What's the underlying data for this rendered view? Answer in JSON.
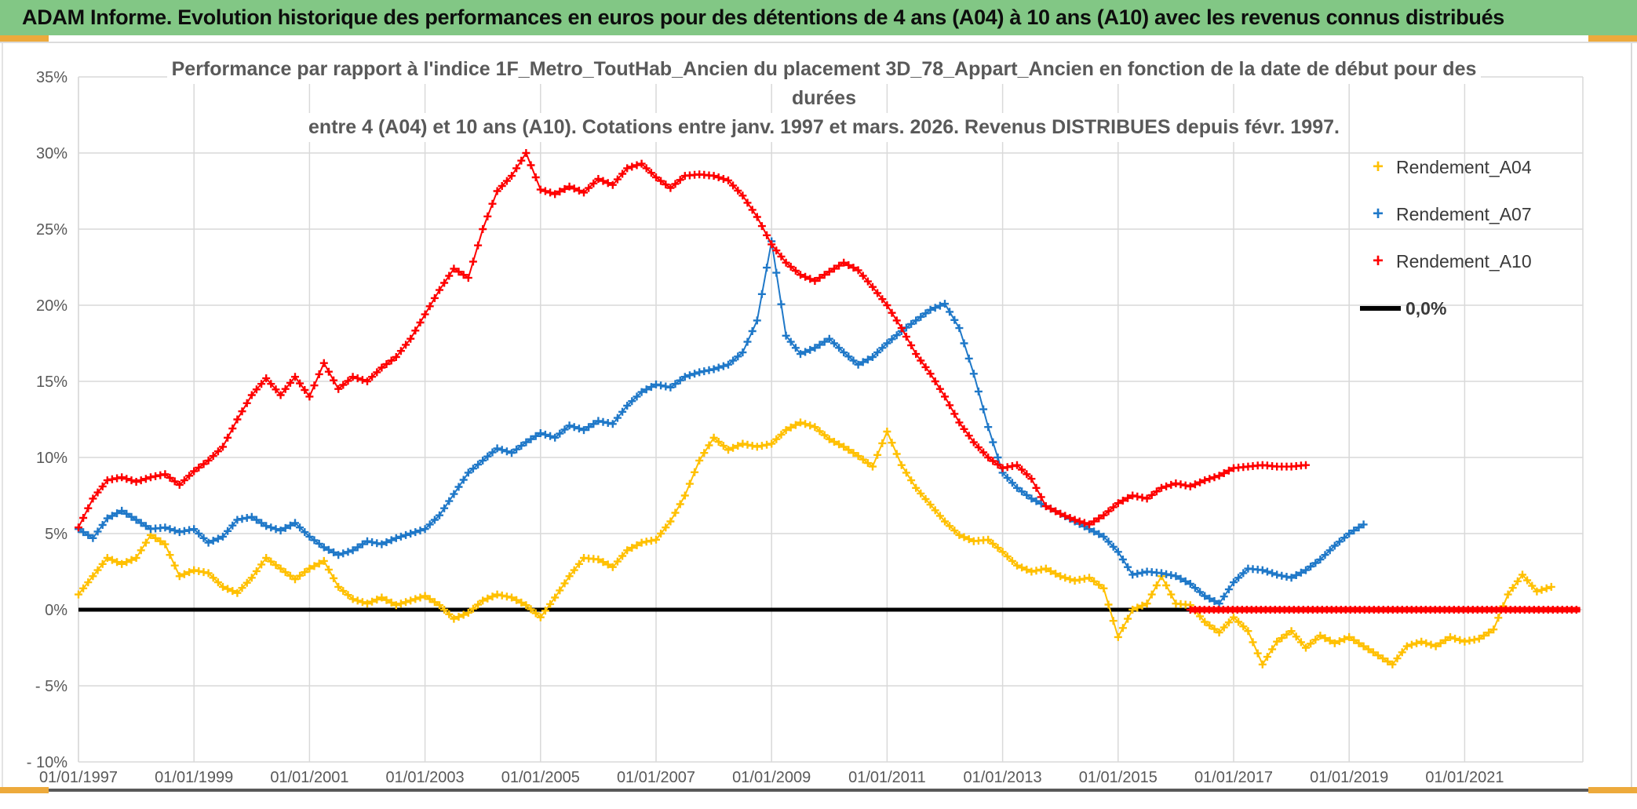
{
  "header": {
    "title": "ADAM Informe. Evolution historique des performances en euros pour des détentions de 4 ans (A04) à 10 ans (A10) avec les revenus connus distribués"
  },
  "accent_colors": {
    "header_green": "#82C785",
    "gold": "#EDAA3C",
    "window_edge": "#595959"
  },
  "chart_data": {
    "type": "line",
    "title_lines": [
      "Performance par rapport à l'indice 1F_Metro_ToutHab_Ancien  du placement 3D_78_Appart_Ancien en fonction de la date de début pour des",
      "durées",
      "entre 4 (A04) et 10 ans (A10). Cotations entre janv. 1997 et mars. 2026. Revenus DISTRIBUES depuis févr. 1997."
    ],
    "grid": true,
    "legend_position": "right",
    "x_axis": {
      "tick_labels": [
        "01/01/1997",
        "01/01/1999",
        "01/01/2001",
        "01/01/2003",
        "01/01/2005",
        "01/01/2007",
        "01/01/2009",
        "01/01/2011",
        "01/01/2013",
        "01/01/2015",
        "01/01/2017",
        "01/01/2019",
        "01/01/2021"
      ],
      "tick_years": [
        1997,
        1999,
        2001,
        2003,
        2005,
        2007,
        2009,
        2011,
        2013,
        2015,
        2017,
        2019,
        2021
      ],
      "range_start": "1997-01",
      "range_end": "2023-01"
    },
    "y_axis": {
      "tick_labels": [
        "35%",
        "30%",
        "25%",
        "20%",
        "15%",
        "10%",
        "5%",
        "0%",
        "- 5%",
        "- 10%"
      ],
      "tick_values": [
        35,
        30,
        25,
        20,
        15,
        10,
        5,
        0,
        -5,
        -10
      ],
      "unit": "%",
      "ylim": [
        -10,
        35
      ]
    },
    "zero_line": {
      "label": "0,0%",
      "color": "#000000",
      "value": 0,
      "from": "1997-01",
      "to": "2023-01"
    },
    "legend_items": [
      {
        "label": "Rendement_A04",
        "marker": "plus",
        "color": "#FFC000"
      },
      {
        "label": "Rendement_A07",
        "marker": "plus",
        "color": "#1F78C8"
      },
      {
        "label": "Rendement_A10",
        "marker": "plus",
        "color": "#FE0000"
      },
      {
        "label": "0,0%",
        "marker": "line",
        "color": "#000000"
      }
    ],
    "series": [
      {
        "name": "Rendement_A04",
        "color": "#FFC000",
        "marker": "plus",
        "start": "1997-01",
        "interval_months": 3,
        "values": [
          1.0,
          2.2,
          3.4,
          3.0,
          3.4,
          4.9,
          4.3,
          2.2,
          2.6,
          2.4,
          1.5,
          1.1,
          2.1,
          3.4,
          2.7,
          2.0,
          2.7,
          3.2,
          1.5,
          0.7,
          0.4,
          0.8,
          0.3,
          0.6,
          0.9,
          0.3,
          -0.6,
          -0.2,
          0.6,
          1.0,
          0.8,
          0.3,
          -0.5,
          0.8,
          2.2,
          3.4,
          3.3,
          2.8,
          3.9,
          4.4,
          4.6,
          5.8,
          7.5,
          9.8,
          11.3,
          10.5,
          10.9,
          10.7,
          10.9,
          11.8,
          12.3,
          12.0,
          11.2,
          10.7,
          10.1,
          9.4,
          11.7,
          9.5,
          8.0,
          6.9,
          5.8,
          4.9,
          4.5,
          4.6,
          3.8,
          2.9,
          2.5,
          2.7,
          2.2,
          1.9,
          2.1,
          1.4,
          -1.8,
          0.0,
          0.4,
          2.2,
          0.4,
          0.3,
          -0.8,
          -1.5,
          -0.5,
          -1.4,
          -3.6,
          -2.1,
          -1.4,
          -2.5,
          -1.7,
          -2.2,
          -1.8,
          -2.4,
          -3.0,
          -3.6,
          -2.4,
          -2.1,
          -2.4,
          -1.8,
          -2.1,
          -1.9,
          -1.3,
          1.0,
          2.3,
          1.2,
          1.5
        ]
      },
      {
        "name": "Rendement_A07",
        "color": "#1F78C8",
        "marker": "plus",
        "start": "1997-01",
        "interval_months": 3,
        "values": [
          5.3,
          4.7,
          6.0,
          6.5,
          5.9,
          5.3,
          5.4,
          5.1,
          5.3,
          4.4,
          4.8,
          5.9,
          6.1,
          5.5,
          5.2,
          5.7,
          4.8,
          4.1,
          3.6,
          3.9,
          4.5,
          4.3,
          4.7,
          5.0,
          5.3,
          6.2,
          7.6,
          9.0,
          9.8,
          10.6,
          10.3,
          11.0,
          11.6,
          11.3,
          12.1,
          11.8,
          12.4,
          12.2,
          13.4,
          14.3,
          14.8,
          14.6,
          15.3,
          15.6,
          15.8,
          16.1,
          16.9,
          19.0,
          24.2,
          18.0,
          16.8,
          17.2,
          17.8,
          16.9,
          16.1,
          16.6,
          17.5,
          18.3,
          19.0,
          19.7,
          20.1,
          18.5,
          15.5,
          12.0,
          9.0,
          8.0,
          7.3,
          6.8,
          6.3,
          5.8,
          5.3,
          4.8,
          3.8,
          2.3,
          2.5,
          2.4,
          2.2,
          1.7,
          0.9,
          0.4,
          1.8,
          2.7,
          2.6,
          2.3,
          2.1,
          2.6,
          3.3,
          4.2,
          5.0,
          5.6
        ]
      },
      {
        "name": "Rendement_A10",
        "color": "#FE0000",
        "marker": "plus",
        "start": "1997-01",
        "interval_months": 3,
        "values": [
          5.4,
          7.3,
          8.5,
          8.7,
          8.4,
          8.7,
          8.9,
          8.2,
          9.1,
          9.8,
          10.7,
          12.5,
          14.1,
          15.2,
          14.1,
          15.3,
          14.0,
          16.2,
          14.5,
          15.3,
          15.0,
          15.9,
          16.6,
          17.8,
          19.4,
          21.0,
          22.4,
          21.8,
          25.0,
          27.5,
          28.5,
          30.0,
          27.6,
          27.3,
          27.8,
          27.4,
          28.3,
          27.9,
          29.0,
          29.3,
          28.4,
          27.7,
          28.5,
          28.6,
          28.5,
          28.2,
          27.2,
          25.8,
          24.0,
          22.8,
          22.0,
          21.6,
          22.2,
          22.8,
          22.3,
          21.2,
          20.0,
          18.5,
          16.8,
          15.5,
          14.0,
          12.3,
          11.0,
          10.0,
          9.3,
          9.5,
          8.6,
          6.8,
          6.3,
          5.9,
          5.6,
          6.2,
          7.0,
          7.5,
          7.3,
          8.0,
          8.3,
          8.1,
          8.5,
          8.8,
          9.3,
          9.4,
          9.5,
          9.4,
          9.4,
          9.5
        ],
        "flat_zero_from": "2016-04",
        "flat_zero_to": "2023-01"
      }
    ]
  }
}
